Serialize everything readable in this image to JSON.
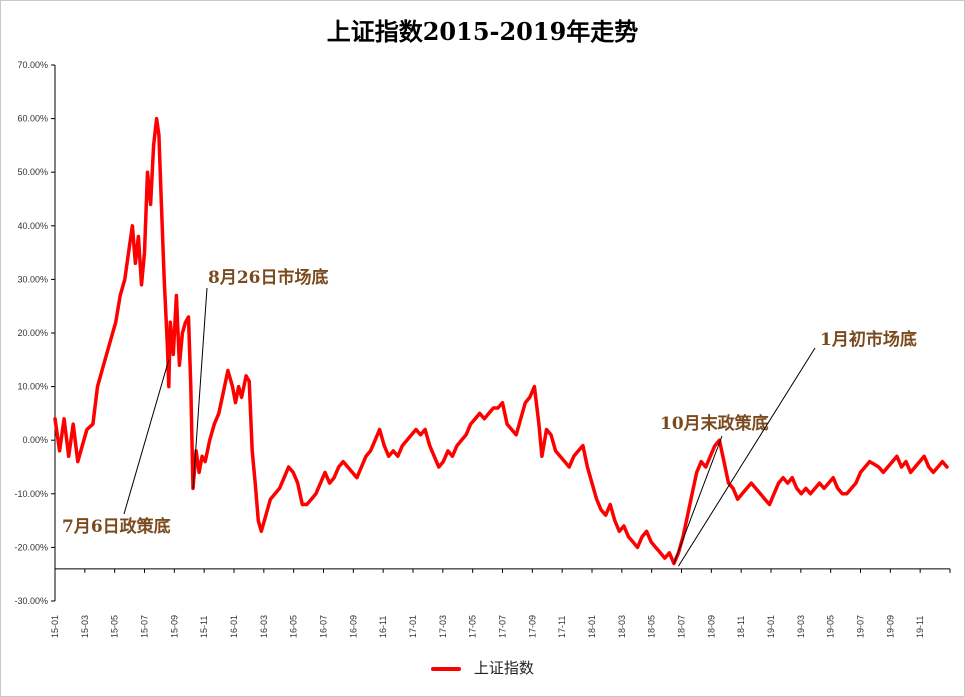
{
  "chart_data": {
    "type": "line",
    "title": "上证指数2015-2019年走势",
    "y_axis": {
      "min": -30,
      "max": 70,
      "step": 10,
      "format": "percent",
      "tick_labels": [
        "70.00%",
        "60.00%",
        "50.00%",
        "40.00%",
        "30.00%",
        "20.00%",
        "10.00%",
        "0.00%",
        "-10.00%",
        "-20.00%",
        "-30.00%"
      ]
    },
    "x_axis": {
      "crosses_at": -24,
      "tick_labels": [
        "15-01",
        "15-03",
        "15-05",
        "15-07",
        "15-09",
        "15-11",
        "16-01",
        "16-03",
        "16-05",
        "16-07",
        "16-09",
        "16-11",
        "17-01",
        "17-03",
        "17-05",
        "17-07",
        "17-09",
        "17-11",
        "18-01",
        "18-03",
        "18-05",
        "18-07",
        "18-09",
        "18-11",
        "19-01",
        "19-03",
        "19-05",
        "19-07",
        "19-09",
        "19-11"
      ]
    },
    "series": [
      {
        "name": "上证指数",
        "color": "#ff0000",
        "points": [
          [
            0,
            4
          ],
          [
            0.3,
            -2
          ],
          [
            0.6,
            4
          ],
          [
            0.9,
            -3
          ],
          [
            1.2,
            3
          ],
          [
            1.5,
            -4
          ],
          [
            1.8,
            -1
          ],
          [
            2.1,
            2
          ],
          [
            2.5,
            3
          ],
          [
            2.8,
            10
          ],
          [
            3.2,
            14
          ],
          [
            3.6,
            18
          ],
          [
            4.0,
            22
          ],
          [
            4.3,
            27
          ],
          [
            4.6,
            30
          ],
          [
            4.9,
            36
          ],
          [
            5.1,
            40
          ],
          [
            5.3,
            33
          ],
          [
            5.5,
            38
          ],
          [
            5.7,
            29
          ],
          [
            5.9,
            35
          ],
          [
            6.1,
            50
          ],
          [
            6.3,
            44
          ],
          [
            6.5,
            55
          ],
          [
            6.7,
            60
          ],
          [
            6.85,
            57
          ],
          [
            7.0,
            45
          ],
          [
            7.2,
            30
          ],
          [
            7.4,
            18
          ],
          [
            7.5,
            10
          ],
          [
            7.6,
            22
          ],
          [
            7.8,
            16
          ],
          [
            8.0,
            27
          ],
          [
            8.2,
            14
          ],
          [
            8.4,
            20
          ],
          [
            8.6,
            22
          ],
          [
            8.8,
            23
          ],
          [
            8.95,
            10
          ],
          [
            9.1,
            -9
          ],
          [
            9.3,
            -2
          ],
          [
            9.5,
            -6
          ],
          [
            9.7,
            -3
          ],
          [
            9.9,
            -4
          ],
          [
            10.2,
            0
          ],
          [
            10.5,
            3
          ],
          [
            10.8,
            5
          ],
          [
            11.1,
            9
          ],
          [
            11.4,
            13
          ],
          [
            11.7,
            10
          ],
          [
            11.9,
            7
          ],
          [
            12.1,
            10
          ],
          [
            12.3,
            8
          ],
          [
            12.6,
            12
          ],
          [
            12.8,
            11
          ],
          [
            13.0,
            -2
          ],
          [
            13.2,
            -8
          ],
          [
            13.4,
            -15
          ],
          [
            13.6,
            -17
          ],
          [
            13.9,
            -14
          ],
          [
            14.2,
            -11
          ],
          [
            14.5,
            -10
          ],
          [
            14.8,
            -9
          ],
          [
            15.1,
            -7
          ],
          [
            15.4,
            -5
          ],
          [
            15.7,
            -6
          ],
          [
            16.0,
            -8
          ],
          [
            16.3,
            -12
          ],
          [
            16.6,
            -12
          ],
          [
            16.9,
            -11
          ],
          [
            17.2,
            -10
          ],
          [
            17.5,
            -8
          ],
          [
            17.8,
            -6
          ],
          [
            18.1,
            -8
          ],
          [
            18.4,
            -7
          ],
          [
            18.7,
            -5
          ],
          [
            19.0,
            -4
          ],
          [
            19.3,
            -5
          ],
          [
            19.6,
            -6
          ],
          [
            19.9,
            -7
          ],
          [
            20.2,
            -5
          ],
          [
            20.5,
            -3
          ],
          [
            20.8,
            -2
          ],
          [
            21.1,
            0
          ],
          [
            21.4,
            2
          ],
          [
            21.7,
            -1
          ],
          [
            22.0,
            -3
          ],
          [
            22.3,
            -2
          ],
          [
            22.6,
            -3
          ],
          [
            22.9,
            -1
          ],
          [
            23.2,
            0
          ],
          [
            23.5,
            1
          ],
          [
            23.8,
            2
          ],
          [
            24.1,
            1
          ],
          [
            24.4,
            2
          ],
          [
            24.7,
            -1
          ],
          [
            25.0,
            -3
          ],
          [
            25.3,
            -5
          ],
          [
            25.6,
            -4
          ],
          [
            25.9,
            -2
          ],
          [
            26.2,
            -3
          ],
          [
            26.5,
            -1
          ],
          [
            26.8,
            0
          ],
          [
            27.1,
            1
          ],
          [
            27.4,
            3
          ],
          [
            27.7,
            4
          ],
          [
            28.0,
            5
          ],
          [
            28.3,
            4
          ],
          [
            28.6,
            5
          ],
          [
            28.9,
            6
          ],
          [
            29.2,
            6
          ],
          [
            29.5,
            7
          ],
          [
            29.8,
            3
          ],
          [
            30.1,
            2
          ],
          [
            30.4,
            1
          ],
          [
            30.7,
            4
          ],
          [
            31.0,
            7
          ],
          [
            31.3,
            8
          ],
          [
            31.6,
            10
          ],
          [
            31.9,
            3
          ],
          [
            32.1,
            -3
          ],
          [
            32.4,
            2
          ],
          [
            32.7,
            1
          ],
          [
            33.0,
            -2
          ],
          [
            33.3,
            -3
          ],
          [
            33.6,
            -4
          ],
          [
            33.9,
            -5
          ],
          [
            34.2,
            -3
          ],
          [
            34.5,
            -2
          ],
          [
            34.8,
            -1
          ],
          [
            35.1,
            -5
          ],
          [
            35.4,
            -8
          ],
          [
            35.7,
            -11
          ],
          [
            36.0,
            -13
          ],
          [
            36.3,
            -14
          ],
          [
            36.6,
            -12
          ],
          [
            36.9,
            -15
          ],
          [
            37.2,
            -17
          ],
          [
            37.5,
            -16
          ],
          [
            37.8,
            -18
          ],
          [
            38.1,
            -19
          ],
          [
            38.4,
            -20
          ],
          [
            38.7,
            -18
          ],
          [
            39.0,
            -17
          ],
          [
            39.3,
            -19
          ],
          [
            39.6,
            -20
          ],
          [
            39.9,
            -21
          ],
          [
            40.2,
            -22
          ],
          [
            40.5,
            -21
          ],
          [
            40.8,
            -23
          ],
          [
            41.1,
            -21
          ],
          [
            41.4,
            -18
          ],
          [
            41.7,
            -14
          ],
          [
            42.0,
            -10
          ],
          [
            42.3,
            -6
          ],
          [
            42.6,
            -4
          ],
          [
            42.9,
            -5
          ],
          [
            43.2,
            -3
          ],
          [
            43.5,
            -1
          ],
          [
            43.8,
            0
          ],
          [
            44.1,
            -4
          ],
          [
            44.4,
            -8
          ],
          [
            44.7,
            -9
          ],
          [
            45.0,
            -11
          ],
          [
            45.3,
            -10
          ],
          [
            45.6,
            -9
          ],
          [
            45.9,
            -8
          ],
          [
            46.2,
            -9
          ],
          [
            46.5,
            -10
          ],
          [
            46.8,
            -11
          ],
          [
            47.1,
            -12
          ],
          [
            47.4,
            -10
          ],
          [
            47.7,
            -8
          ],
          [
            48.0,
            -7
          ],
          [
            48.3,
            -8
          ],
          [
            48.6,
            -7
          ],
          [
            48.9,
            -9
          ],
          [
            49.2,
            -10
          ],
          [
            49.5,
            -9
          ],
          [
            49.8,
            -10
          ],
          [
            50.1,
            -9
          ],
          [
            50.4,
            -8
          ],
          [
            50.7,
            -9
          ],
          [
            51.0,
            -8
          ],
          [
            51.3,
            -7
          ],
          [
            51.6,
            -9
          ],
          [
            51.9,
            -10
          ],
          [
            52.2,
            -10
          ],
          [
            52.5,
            -9
          ],
          [
            52.8,
            -8
          ],
          [
            53.1,
            -6
          ],
          [
            53.4,
            -5
          ],
          [
            53.7,
            -4
          ],
          [
            54.0,
            -4.5
          ],
          [
            54.3,
            -5
          ],
          [
            54.6,
            -6
          ],
          [
            54.9,
            -5
          ],
          [
            55.2,
            -4
          ],
          [
            55.5,
            -3
          ],
          [
            55.8,
            -5
          ],
          [
            56.1,
            -4
          ],
          [
            56.4,
            -6
          ],
          [
            56.7,
            -5
          ],
          [
            57.0,
            -4
          ],
          [
            57.3,
            -3
          ],
          [
            57.6,
            -5
          ],
          [
            57.9,
            -6
          ],
          [
            58.2,
            -5
          ],
          [
            58.5,
            -4
          ],
          [
            58.8,
            -5
          ]
        ]
      }
    ],
    "annotations": [
      {
        "text": "8月26日市场底",
        "x": 9.1,
        "y": -9
      },
      {
        "text": "7月6日政策底",
        "x": 7.5,
        "y": 15
      },
      {
        "text": "10月末政策底",
        "x": 40.8,
        "y": -23
      },
      {
        "text": "1月初市场底",
        "x": 41.1,
        "y": -23.5
      }
    ],
    "legend": {
      "label": "上证指数",
      "placement": "bottom"
    },
    "grid": false
  }
}
